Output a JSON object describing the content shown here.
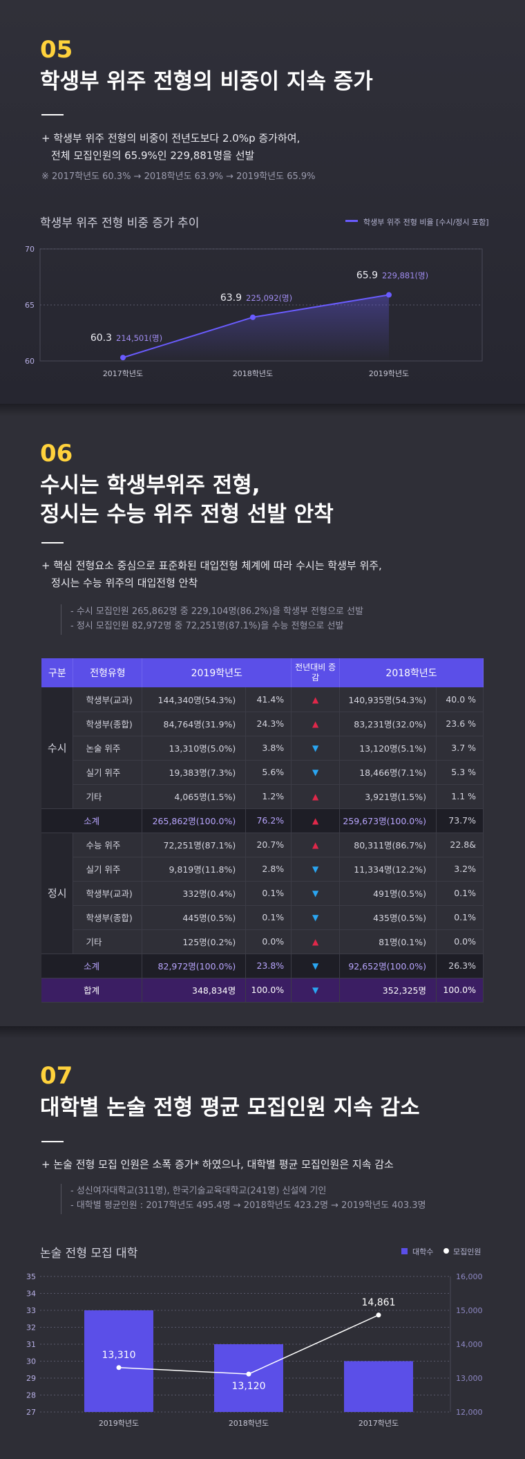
{
  "colors": {
    "accent": "#5b4fe8",
    "number": "#ffd23c",
    "up": "#e0284a",
    "down": "#2aa6f2",
    "line": "#6a5cff",
    "sub_text": "#b9a6ff"
  },
  "section05": {
    "number": "05",
    "title": "학생부 위주 전형의 비중이 지속 증가",
    "lead1": "+ 학생부 위주 전형의 비중이 전년도보다 2.0%p 증가하여,",
    "lead2": "전체 모집인원의 65.9%인 229,881명을 선발",
    "note": "※ 2017학년도 60.3% → 2018학년도 63.9% → 2019학년도 65.9%",
    "chart_title": "학생부 위주 전형 비중 증가 추이",
    "legend": "학생부 위주 전형 비율 [수시/정시 포함]"
  },
  "section06": {
    "number": "06",
    "title1": "수시는 학생부위주 전형,",
    "title2": "정시는 수능 위주 전형 선발 안착",
    "lead1": "+ 핵심 전형요소 중심으로 표준화된 대입전형 체계에 따라 수시는 학생부 위주,",
    "lead2": "정시는 수능 위주의 대입전형 안착",
    "note1": "- 수시 모집인원 265,862명 중 229,104명(86.2%)을 학생부 전형으로 선발",
    "note2": "- 정시 모집인원 82,972명 중 72,251명(87.1%)을 수능 전형으로 선발",
    "table": {
      "headers": {
        "group": "구분",
        "type": "전형유형",
        "y2019": "2019학년도",
        "change": "전년대비 증감",
        "y2018": "2018학년도"
      },
      "susi_label": "수시",
      "jeongsi_label": "정시",
      "susi_rows": [
        {
          "type": "학생부(교과)",
          "v2019": "144,340명(54.3%)",
          "p2019": "41.4%",
          "arrow": "up",
          "v2018": "140,935명(54.3%)",
          "p2018": "40.0 %"
        },
        {
          "type": "학생부(종합)",
          "v2019": "84,764명(31.9%)",
          "p2019": "24.3%",
          "arrow": "up",
          "v2018": "83,231명(32.0%)",
          "p2018": "23.6 %"
        },
        {
          "type": "논술 위주",
          "v2019": "13,310명(5.0%)",
          "p2019": "3.8%",
          "arrow": "down",
          "v2018": "13,120명(5.1%)",
          "p2018": "3.7 %"
        },
        {
          "type": "실기 위주",
          "v2019": "19,383명(7.3%)",
          "p2019": "5.6%",
          "arrow": "down",
          "v2018": "18,466명(7.1%)",
          "p2018": "5.3 %"
        },
        {
          "type": "기타",
          "v2019": "4,065명(1.5%)",
          "p2019": "1.2%",
          "arrow": "up",
          "v2018": "3,921명(1.5%)",
          "p2018": "1.1 %"
        }
      ],
      "susi_sub": {
        "label": "소계",
        "v2019": "265,862명(100.0%)",
        "p2019": "76.2%",
        "arrow": "up",
        "v2018": "259,673명(100.0%)",
        "p2018": "73.7%"
      },
      "jeongsi_rows": [
        {
          "type": "수능 위주",
          "v2019": "72,251명(87.1%)",
          "p2019": "20.7%",
          "arrow": "up",
          "v2018": "80,311명(86.7%)",
          "p2018": "22.8&"
        },
        {
          "type": "실기 위주",
          "v2019": "9,819명(11.8%)",
          "p2019": "2.8%",
          "arrow": "down",
          "v2018": "11,334명(12.2%)",
          "p2018": "3.2%"
        },
        {
          "type": "학생부(교과)",
          "v2019": "332명(0.4%)",
          "p2019": "0.1%",
          "arrow": "down",
          "v2018": "491명(0.5%)",
          "p2018": "0.1%"
        },
        {
          "type": "학생부(종합)",
          "v2019": "445명(0.5%)",
          "p2019": "0.1%",
          "arrow": "down",
          "v2018": "435명(0.5%)",
          "p2018": "0.1%"
        },
        {
          "type": "기타",
          "v2019": "125명(0.2%)",
          "p2019": "0.0%",
          "arrow": "up",
          "v2018": "81명(0.1%)",
          "p2018": "0.0%"
        }
      ],
      "jeongsi_sub": {
        "label": "소계",
        "v2019": "82,972명(100.0%)",
        "p2019": "23.8%",
        "arrow": "down",
        "v2018": "92,652명(100.0%)",
        "p2018": "26.3%"
      },
      "total": {
        "label": "합계",
        "v2019": "348,834명",
        "p2019": "100.0%",
        "arrow": "down",
        "v2018": "352,325명",
        "p2018": "100.0%"
      }
    }
  },
  "section07": {
    "number": "07",
    "title": "대학별 논술 전형 평균 모집인원 지속 감소",
    "lead": "+ 논술 전형 모집 인원은 소폭 증가* 하였으나, 대학별 평균 모집인원은 지속 감소",
    "note1": "- 성신여자대학교(311명), 한국기술교육대학교(241명) 신설에 기인",
    "note2": "- 대학별 평균인원 : 2017학년도 495.4명 → 2018학년도 423.2명 → 2019학년도 403.3명",
    "chart_title": "논술 전형 모집 대학",
    "legend_bar": "대학수",
    "legend_line": "모집인원"
  },
  "chart_data": [
    {
      "type": "area",
      "title": "학생부 위주 전형 비중 증가 추이",
      "series_name": "학생부 위주 전형 비율 [수시/정시 포함]",
      "categories": [
        "2017학년도",
        "2018학년도",
        "2019학년도"
      ],
      "values": [
        60.3,
        63.9,
        65.9
      ],
      "value_labels": [
        "60.3",
        "63.9",
        "65.9"
      ],
      "count_labels": [
        "214,501(명)",
        "225,092(명)",
        "229,881(명)"
      ],
      "ylim": [
        60,
        70
      ],
      "yticks": [
        "70",
        "65",
        "60"
      ]
    },
    {
      "type": "bar",
      "title": "논술 전형 모집 대학",
      "categories": [
        "2019학년도",
        "2018학년도",
        "2017학년도"
      ],
      "series": [
        {
          "name": "대학수",
          "values": [
            33,
            31,
            30
          ],
          "axis": "left"
        },
        {
          "name": "모집인원",
          "values": [
            13310,
            13120,
            14861
          ],
          "labels": [
            "13,310",
            "13,120",
            "14,861"
          ],
          "axis": "right",
          "kind": "line"
        }
      ],
      "ylim_left": [
        27,
        35
      ],
      "yticks_left": [
        "35",
        "34",
        "33",
        "32",
        "31",
        "30",
        "29",
        "28",
        "27"
      ],
      "ylim_right": [
        12000,
        16000
      ],
      "yticks_right": [
        "16,000",
        "15,000",
        "14,000",
        "13,000",
        "12,000"
      ]
    }
  ]
}
